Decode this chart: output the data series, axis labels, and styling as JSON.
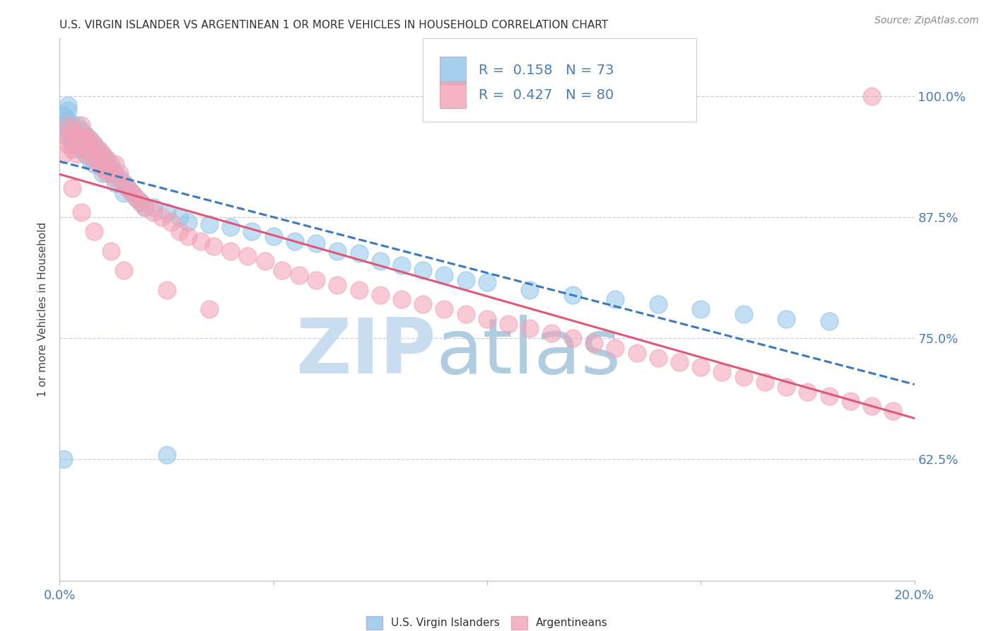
{
  "title": "U.S. VIRGIN ISLANDER VS ARGENTINEAN 1 OR MORE VEHICLES IN HOUSEHOLD CORRELATION CHART",
  "source": "Source: ZipAtlas.com",
  "ylabel": "1 or more Vehicles in Household",
  "ytick_labels": [
    "62.5%",
    "75.0%",
    "87.5%",
    "100.0%"
  ],
  "ytick_values": [
    0.625,
    0.75,
    0.875,
    1.0
  ],
  "legend_entries": [
    {
      "label": "U.S. Virgin Islanders",
      "color": "#8fc3e8",
      "R": 0.158,
      "N": 73
    },
    {
      "label": "Argentineans",
      "color": "#f4a0b5",
      "R": 0.427,
      "N": 80
    }
  ],
  "blue_color": "#8fc3e8",
  "pink_color": "#f4a0b5",
  "blue_line_color": "#3a7abf",
  "pink_line_color": "#e05878",
  "title_color": "#333333",
  "source_color": "#888888",
  "axis_label_color": "#4a7db5",
  "grid_color": "#ccccdd",
  "watermark_zip_color": "#c8ddf0",
  "watermark_atlas_color": "#b0cce0",
  "background_color": "#ffffff",
  "xlim": [
    0.0,
    0.2
  ],
  "ylim": [
    0.5,
    1.06
  ],
  "xtick_vals": [
    0.0,
    0.05,
    0.1,
    0.15,
    0.2
  ],
  "blue_x": [
    0.001,
    0.001,
    0.001,
    0.002,
    0.002,
    0.002,
    0.002,
    0.003,
    0.003,
    0.003,
    0.003,
    0.004,
    0.004,
    0.004,
    0.005,
    0.005,
    0.005,
    0.006,
    0.006,
    0.006,
    0.007,
    0.007,
    0.007,
    0.008,
    0.008,
    0.008,
    0.009,
    0.009,
    0.01,
    0.01,
    0.01,
    0.011,
    0.011,
    0.012,
    0.012,
    0.013,
    0.013,
    0.014,
    0.015,
    0.015,
    0.016,
    0.017,
    0.018,
    0.019,
    0.02,
    0.022,
    0.025,
    0.028,
    0.03,
    0.035,
    0.04,
    0.045,
    0.05,
    0.055,
    0.06,
    0.065,
    0.07,
    0.075,
    0.08,
    0.085,
    0.09,
    0.095,
    0.1,
    0.11,
    0.12,
    0.13,
    0.14,
    0.15,
    0.16,
    0.17,
    0.18,
    0.001,
    0.025
  ],
  "blue_y": [
    0.97,
    0.96,
    0.98,
    0.975,
    0.965,
    0.985,
    0.99,
    0.96,
    0.95,
    0.97,
    0.955,
    0.96,
    0.97,
    0.95,
    0.965,
    0.955,
    0.945,
    0.96,
    0.95,
    0.94,
    0.955,
    0.945,
    0.935,
    0.95,
    0.94,
    0.93,
    0.945,
    0.935,
    0.94,
    0.93,
    0.92,
    0.935,
    0.925,
    0.93,
    0.92,
    0.92,
    0.91,
    0.915,
    0.91,
    0.9,
    0.905,
    0.9,
    0.895,
    0.89,
    0.885,
    0.885,
    0.88,
    0.875,
    0.87,
    0.868,
    0.865,
    0.86,
    0.855,
    0.85,
    0.848,
    0.84,
    0.838,
    0.83,
    0.825,
    0.82,
    0.815,
    0.81,
    0.808,
    0.8,
    0.795,
    0.79,
    0.785,
    0.78,
    0.775,
    0.77,
    0.768,
    0.625,
    0.63
  ],
  "pink_x": [
    0.001,
    0.001,
    0.002,
    0.002,
    0.003,
    0.003,
    0.004,
    0.004,
    0.005,
    0.005,
    0.006,
    0.006,
    0.007,
    0.007,
    0.008,
    0.008,
    0.009,
    0.009,
    0.01,
    0.01,
    0.011,
    0.011,
    0.012,
    0.013,
    0.013,
    0.014,
    0.015,
    0.016,
    0.017,
    0.018,
    0.019,
    0.02,
    0.022,
    0.024,
    0.026,
    0.028,
    0.03,
    0.033,
    0.036,
    0.04,
    0.044,
    0.048,
    0.052,
    0.056,
    0.06,
    0.065,
    0.07,
    0.075,
    0.08,
    0.085,
    0.09,
    0.095,
    0.1,
    0.105,
    0.11,
    0.115,
    0.12,
    0.125,
    0.13,
    0.135,
    0.14,
    0.145,
    0.15,
    0.155,
    0.16,
    0.165,
    0.17,
    0.175,
    0.18,
    0.185,
    0.19,
    0.195,
    0.003,
    0.005,
    0.008,
    0.012,
    0.015,
    0.025,
    0.035,
    0.19
  ],
  "pink_y": [
    0.96,
    0.94,
    0.97,
    0.95,
    0.965,
    0.945,
    0.96,
    0.94,
    0.955,
    0.97,
    0.945,
    0.96,
    0.94,
    0.955,
    0.935,
    0.95,
    0.93,
    0.945,
    0.925,
    0.94,
    0.92,
    0.935,
    0.925,
    0.915,
    0.93,
    0.92,
    0.91,
    0.905,
    0.9,
    0.895,
    0.89,
    0.885,
    0.88,
    0.875,
    0.87,
    0.86,
    0.855,
    0.85,
    0.845,
    0.84,
    0.835,
    0.83,
    0.82,
    0.815,
    0.81,
    0.805,
    0.8,
    0.795,
    0.79,
    0.785,
    0.78,
    0.775,
    0.77,
    0.765,
    0.76,
    0.755,
    0.75,
    0.745,
    0.74,
    0.735,
    0.73,
    0.725,
    0.72,
    0.715,
    0.71,
    0.705,
    0.7,
    0.695,
    0.69,
    0.685,
    0.68,
    0.675,
    0.905,
    0.88,
    0.86,
    0.84,
    0.82,
    0.8,
    0.78,
    1.0
  ]
}
